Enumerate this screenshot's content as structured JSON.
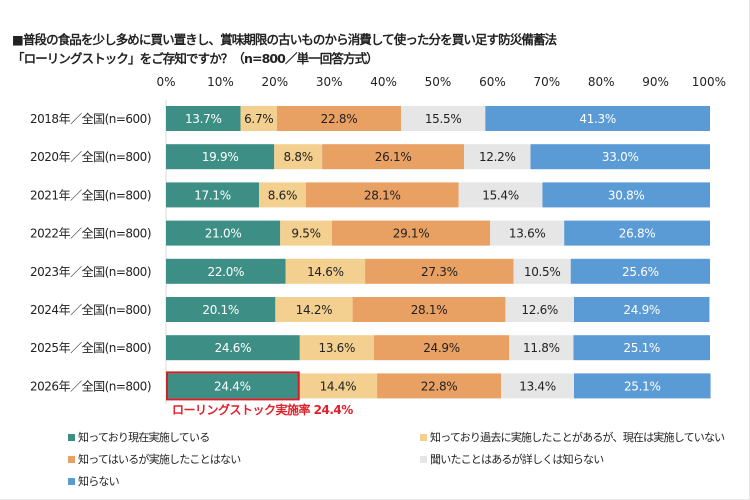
{
  "chart_data": {
    "type": "bar",
    "orientation": "horizontal",
    "stacked": true,
    "title_lines": [
      "■普段の食品を少し多めに買い置きし、賞味期限の古いものから消費して使った分を買い足す防災備蓄法",
      "「ローリングストック」をご存知ですか？（n=800／単一回答方式）"
    ],
    "xlim": [
      0,
      100
    ],
    "x_ticks": [
      "0%",
      "10%",
      "20%",
      "30%",
      "40%",
      "50%",
      "60%",
      "70%",
      "80%",
      "90%",
      "100%"
    ],
    "categories": [
      "2018年／全国(n=600)",
      "2020年／全国(n=800)",
      "2021年／全国(n=800)",
      "2022年／全国(n=800)",
      "2023年／全国(n=800)",
      "2024年／全国(n=800)",
      "2025年／全国(n=800)",
      "2026年／全国(n=800)"
    ],
    "series": [
      {
        "name": "知っており現在実施している",
        "color": "#3d8f85",
        "label_color": "#ffffff",
        "values": [
          13.7,
          19.9,
          17.1,
          21.0,
          22.0,
          20.1,
          24.6,
          24.4
        ]
      },
      {
        "name": "知っており過去に実施したことがあるが、現在は実施していない",
        "color": "#f3d08f",
        "label_color": "#222222",
        "values": [
          6.7,
          8.8,
          8.6,
          9.5,
          14.6,
          14.2,
          13.6,
          14.4
        ]
      },
      {
        "name": "知ってはいるが実施したことはない",
        "color": "#e9a063",
        "label_color": "#222222",
        "values": [
          22.8,
          26.1,
          28.1,
          29.1,
          27.3,
          28.1,
          24.9,
          22.8
        ]
      },
      {
        "name": "聞いたことはあるが詳しくは知らない",
        "color": "#e6e6e6",
        "label_color": "#222222",
        "values": [
          15.5,
          12.2,
          15.4,
          13.6,
          10.5,
          12.6,
          11.8,
          13.4
        ]
      },
      {
        "name": "知らない",
        "color": "#5b9bd5",
        "label_color": "#ffffff",
        "values": [
          41.3,
          33.0,
          30.8,
          26.8,
          25.6,
          24.9,
          25.1,
          25.1
        ]
      }
    ],
    "highlight": {
      "category_index": 7,
      "series_index": 0,
      "border_color": "#d0202a"
    },
    "annotation": "ローリングストック実施率 24.4%",
    "legend_position": "bottom",
    "grid": false
  }
}
